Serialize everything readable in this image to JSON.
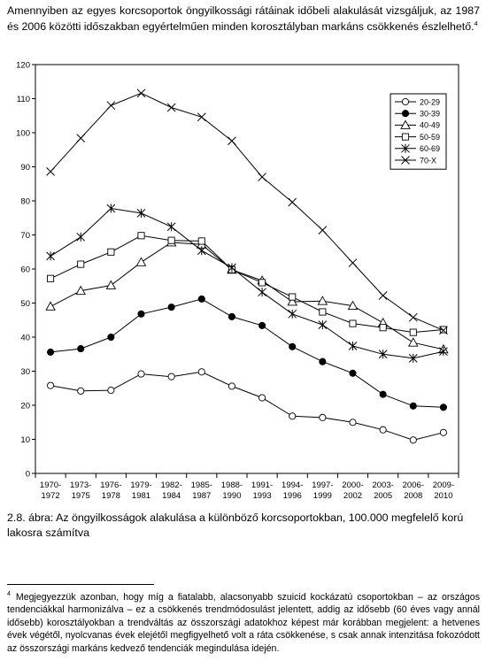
{
  "intro": {
    "text": "Amennyiben az egyes korcsoportok öngyilkossági rátáinak időbeli alakulását vizsgáljuk, az 1987 és 2006 közötti időszakban egyértelműen minden korosztályban markáns csökkenés észlelhető.",
    "footnote_ref": "4"
  },
  "chart_data": {
    "type": "line",
    "title": "",
    "xlabel": "",
    "ylabel": "",
    "ylim": [
      0,
      120
    ],
    "yticks": [
      "0",
      "10",
      "20",
      "30",
      "40",
      "50",
      "60",
      "70",
      "80",
      "90",
      "100",
      "110",
      "120"
    ],
    "categories": [
      [
        "1970-",
        "1972"
      ],
      [
        "1973-",
        "1975"
      ],
      [
        "1976-",
        "1978"
      ],
      [
        "1979-",
        "1981"
      ],
      [
        "1982-",
        "1984"
      ],
      [
        "1985-",
        "1987"
      ],
      [
        "1988-",
        "1990"
      ],
      [
        "1991-",
        "1993"
      ],
      [
        "1994-",
        "1996"
      ],
      [
        "1997-",
        "1999"
      ],
      [
        "2000-",
        "2002"
      ],
      [
        "2003-",
        "2005"
      ],
      [
        "2006-",
        "2008"
      ],
      [
        "2009-",
        "2010"
      ]
    ],
    "legend_position": "top-right",
    "grid": "none",
    "series": [
      {
        "name": "20-29",
        "marker": "circle-open",
        "values": [
          25.8,
          24.2,
          24.4,
          29.2,
          28.4,
          29.8,
          25.6,
          22.2,
          16.8,
          16.4,
          15.0,
          12.8,
          9.8,
          12.0
        ]
      },
      {
        "name": "30-39",
        "marker": "circle-filled",
        "values": [
          35.6,
          36.6,
          40.0,
          46.8,
          48.8,
          51.2,
          46.0,
          43.4,
          37.2,
          32.8,
          29.4,
          23.2,
          19.8,
          19.4
        ]
      },
      {
        "name": "40-49",
        "marker": "triangle-open",
        "values": [
          49.0,
          53.6,
          55.2,
          62.0,
          67.8,
          67.2,
          59.8,
          56.6,
          50.4,
          50.6,
          49.2,
          44.2,
          38.4,
          36.4
        ]
      },
      {
        "name": "50-59",
        "marker": "square-open",
        "values": [
          57.2,
          61.4,
          65.0,
          69.8,
          68.4,
          68.2,
          59.8,
          56.0,
          51.8,
          47.4,
          44.0,
          42.8,
          41.4,
          42.2
        ]
      },
      {
        "name": "60-69",
        "marker": "asterisk",
        "values": [
          63.8,
          69.4,
          77.8,
          76.4,
          72.4,
          65.4,
          60.4,
          53.2,
          46.8,
          43.6,
          37.4,
          35.0,
          33.8,
          35.8
        ]
      },
      {
        "name": "70-X",
        "marker": "x",
        "values": [
          88.6,
          98.4,
          108.0,
          111.6,
          107.4,
          104.6,
          97.6,
          87.0,
          79.6,
          71.4,
          61.8,
          52.2,
          45.8,
          42.0
        ]
      }
    ]
  },
  "caption": {
    "text": "2.8. ábra: Az öngyilkosságok alakulása a különböző korcsoportokban, 100.000 megfelelő korú lakosra számítva"
  },
  "footnote": {
    "number": "4",
    "text": "Megjegyezzük azonban, hogy míg a fiatalabb, alacsonyabb szuicid kockázatú csoportokban – az országos tendenciákkal harmonizálva – ez a csökkenés trendmódosulást jelentett, addig az idősebb (60 éves vagy annál idősebb) korosztályokban a trendváltás az összországi adatokhoz képest már korábban megjelent: a hetvenes évek végétől, nyolcvanas évek elejétől megfigyelhető volt a ráta csökkenése, s csak annak intenzitása fokozódott az összországi markáns kedvező tendenciák megindulása idején."
  }
}
